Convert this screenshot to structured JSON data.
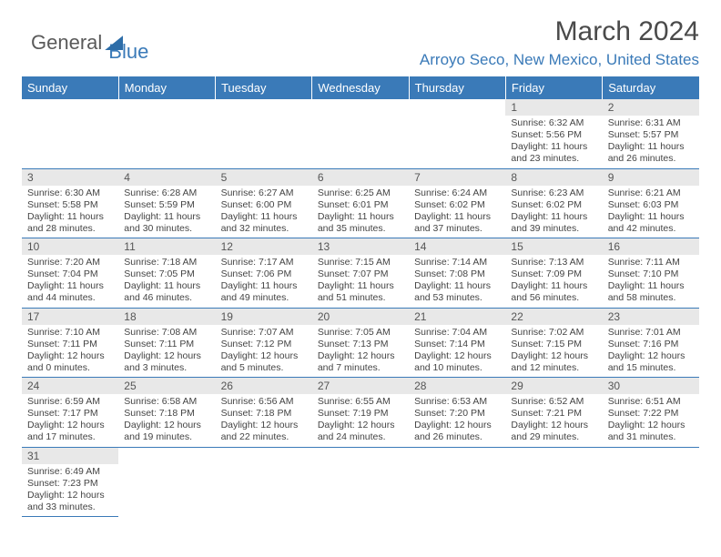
{
  "logo": {
    "text1": "General",
    "text2": "Blue"
  },
  "title": "March 2024",
  "location": "Arroyo Seco, New Mexico, United States",
  "colors": {
    "header_bg": "#3a7ab8",
    "header_fg": "#ffffff",
    "daynum_bg": "#e8e8e8",
    "border": "#3a7ab8"
  },
  "day_headers": [
    "Sunday",
    "Monday",
    "Tuesday",
    "Wednesday",
    "Thursday",
    "Friday",
    "Saturday"
  ],
  "weeks": [
    [
      null,
      null,
      null,
      null,
      null,
      {
        "n": "1",
        "sr": "6:32 AM",
        "ss": "5:56 PM",
        "dl": "11 hours and 23 minutes."
      },
      {
        "n": "2",
        "sr": "6:31 AM",
        "ss": "5:57 PM",
        "dl": "11 hours and 26 minutes."
      }
    ],
    [
      {
        "n": "3",
        "sr": "6:30 AM",
        "ss": "5:58 PM",
        "dl": "11 hours and 28 minutes."
      },
      {
        "n": "4",
        "sr": "6:28 AM",
        "ss": "5:59 PM",
        "dl": "11 hours and 30 minutes."
      },
      {
        "n": "5",
        "sr": "6:27 AM",
        "ss": "6:00 PM",
        "dl": "11 hours and 32 minutes."
      },
      {
        "n": "6",
        "sr": "6:25 AM",
        "ss": "6:01 PM",
        "dl": "11 hours and 35 minutes."
      },
      {
        "n": "7",
        "sr": "6:24 AM",
        "ss": "6:02 PM",
        "dl": "11 hours and 37 minutes."
      },
      {
        "n": "8",
        "sr": "6:23 AM",
        "ss": "6:02 PM",
        "dl": "11 hours and 39 minutes."
      },
      {
        "n": "9",
        "sr": "6:21 AM",
        "ss": "6:03 PM",
        "dl": "11 hours and 42 minutes."
      }
    ],
    [
      {
        "n": "10",
        "sr": "7:20 AM",
        "ss": "7:04 PM",
        "dl": "11 hours and 44 minutes."
      },
      {
        "n": "11",
        "sr": "7:18 AM",
        "ss": "7:05 PM",
        "dl": "11 hours and 46 minutes."
      },
      {
        "n": "12",
        "sr": "7:17 AM",
        "ss": "7:06 PM",
        "dl": "11 hours and 49 minutes."
      },
      {
        "n": "13",
        "sr": "7:15 AM",
        "ss": "7:07 PM",
        "dl": "11 hours and 51 minutes."
      },
      {
        "n": "14",
        "sr": "7:14 AM",
        "ss": "7:08 PM",
        "dl": "11 hours and 53 minutes."
      },
      {
        "n": "15",
        "sr": "7:13 AM",
        "ss": "7:09 PM",
        "dl": "11 hours and 56 minutes."
      },
      {
        "n": "16",
        "sr": "7:11 AM",
        "ss": "7:10 PM",
        "dl": "11 hours and 58 minutes."
      }
    ],
    [
      {
        "n": "17",
        "sr": "7:10 AM",
        "ss": "7:11 PM",
        "dl": "12 hours and 0 minutes."
      },
      {
        "n": "18",
        "sr": "7:08 AM",
        "ss": "7:11 PM",
        "dl": "12 hours and 3 minutes."
      },
      {
        "n": "19",
        "sr": "7:07 AM",
        "ss": "7:12 PM",
        "dl": "12 hours and 5 minutes."
      },
      {
        "n": "20",
        "sr": "7:05 AM",
        "ss": "7:13 PM",
        "dl": "12 hours and 7 minutes."
      },
      {
        "n": "21",
        "sr": "7:04 AM",
        "ss": "7:14 PM",
        "dl": "12 hours and 10 minutes."
      },
      {
        "n": "22",
        "sr": "7:02 AM",
        "ss": "7:15 PM",
        "dl": "12 hours and 12 minutes."
      },
      {
        "n": "23",
        "sr": "7:01 AM",
        "ss": "7:16 PM",
        "dl": "12 hours and 15 minutes."
      }
    ],
    [
      {
        "n": "24",
        "sr": "6:59 AM",
        "ss": "7:17 PM",
        "dl": "12 hours and 17 minutes."
      },
      {
        "n": "25",
        "sr": "6:58 AM",
        "ss": "7:18 PM",
        "dl": "12 hours and 19 minutes."
      },
      {
        "n": "26",
        "sr": "6:56 AM",
        "ss": "7:18 PM",
        "dl": "12 hours and 22 minutes."
      },
      {
        "n": "27",
        "sr": "6:55 AM",
        "ss": "7:19 PM",
        "dl": "12 hours and 24 minutes."
      },
      {
        "n": "28",
        "sr": "6:53 AM",
        "ss": "7:20 PM",
        "dl": "12 hours and 26 minutes."
      },
      {
        "n": "29",
        "sr": "6:52 AM",
        "ss": "7:21 PM",
        "dl": "12 hours and 29 minutes."
      },
      {
        "n": "30",
        "sr": "6:51 AM",
        "ss": "7:22 PM",
        "dl": "12 hours and 31 minutes."
      }
    ],
    [
      {
        "n": "31",
        "sr": "6:49 AM",
        "ss": "7:23 PM",
        "dl": "12 hours and 33 minutes."
      },
      null,
      null,
      null,
      null,
      null,
      null
    ]
  ]
}
